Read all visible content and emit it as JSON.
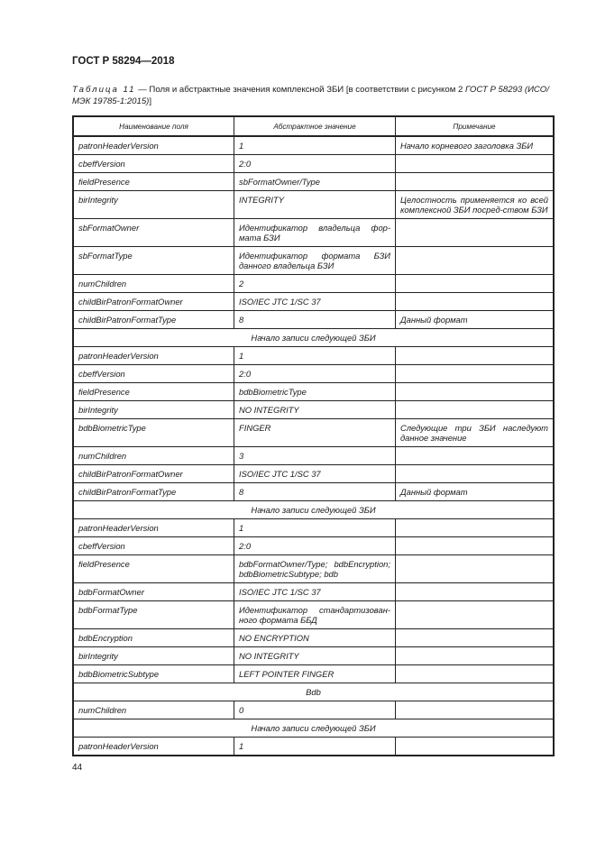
{
  "header": {
    "doc_title": "ГОСТ Р 58294—2018"
  },
  "caption": {
    "label": "Таблица 11",
    "dash": " — ",
    "text": "Поля и абстрактные значения комплексной ЗБИ [в соответствии с рисунком 2 ",
    "ref": "ГОСТ Р 58293 (ИСО/МЭК 19785-1:2015)",
    "end": "]"
  },
  "table": {
    "columns": [
      "Наименование поля",
      "Абстрактное значение",
      "Примечание"
    ],
    "rows": [
      [
        "patronHeaderVersion",
        "1",
        "Начало корневого заголовка ЗБИ"
      ],
      [
        "cbeffVersion",
        "2:0",
        ""
      ],
      [
        "fieldPresence",
        "sbFormatOwner/Type",
        ""
      ],
      [
        "birIntegrity",
        "INTEGRITY",
        "Целостность применяется ко всей комплексной ЗБИ посред-ством БЗИ"
      ],
      [
        "sbFormatOwner",
        "Идентификатор владельца фор-мата БЗИ",
        ""
      ],
      [
        "sbFormatType",
        "Идентификатор формата БЗИ данного владельца БЗИ",
        ""
      ],
      [
        "numChildren",
        "2",
        ""
      ],
      [
        "childBirPatronFormatOwner",
        "ISO/IEC JTC 1/SC 37",
        ""
      ],
      [
        "childBirPatronFormatType",
        "8",
        "Данный формат"
      ],
      [
        "Начало записи следующей ЗБИ"
      ],
      [
        "patronHeaderVersion",
        "1",
        ""
      ],
      [
        "cbeffVersion",
        "2:0",
        ""
      ],
      [
        "fieldPresence",
        "bdbBiometricType",
        ""
      ],
      [
        "birIntegrity",
        "NO INTEGRITY",
        ""
      ],
      [
        "bdbBiometricType",
        "FINGER",
        "Следующие три ЗБИ наследуют данное значение"
      ],
      [
        "numChildren",
        "3",
        ""
      ],
      [
        "childBirPatronFormatOwner",
        "ISO/IEC JTC 1/SC 37",
        ""
      ],
      [
        "childBirPatronFormatType",
        "8",
        "Данный формат"
      ],
      [
        "Начало записи следующей ЗБИ"
      ],
      [
        "patronHeaderVersion",
        "1",
        ""
      ],
      [
        "cbeffVersion",
        "2:0",
        ""
      ],
      [
        "fieldPresence",
        "bdbFormatOwner/Type; bdbEncryption; bdbBiometricSubtype; bdb",
        ""
      ],
      [
        "bdbFormatOwner",
        "ISO/IEC JTC 1/SC 37",
        ""
      ],
      [
        "bdbFormatType",
        "Идентификатор стандартизован-ного формата ББД",
        ""
      ],
      [
        "bdbEncryption",
        "NO ENCRYPTION",
        ""
      ],
      [
        "birIntegrity",
        "NO INTEGRITY",
        ""
      ],
      [
        "bdbBiometricSubtype",
        "LEFT POINTER FINGER",
        ""
      ],
      [
        "Bdb"
      ],
      [
        "numChildren",
        "0",
        ""
      ],
      [
        "Начало записи следующей ЗБИ"
      ],
      [
        "patronHeaderVersion",
        "1",
        ""
      ]
    ]
  },
  "footer": {
    "page_number": "44"
  }
}
